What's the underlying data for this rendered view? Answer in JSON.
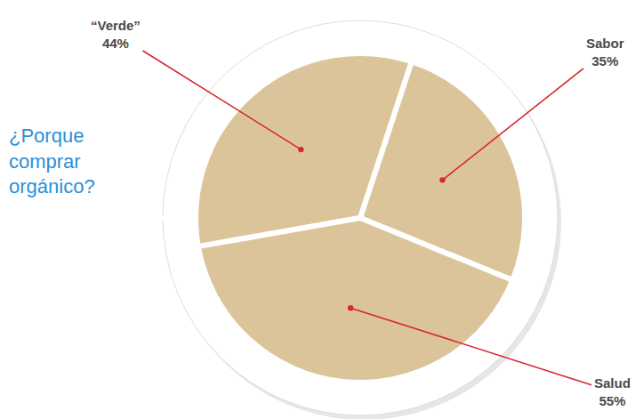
{
  "chart_data": {
    "type": "pie",
    "title": "¿Porque comprar orgánico?",
    "categories": [
      "“Verde”",
      "Sabor",
      "Salud"
    ],
    "values": [
      44,
      35,
      55
    ],
    "value_labels": [
      "44%",
      "35%",
      "55%"
    ],
    "data_labels": true,
    "color": "#dcc49a"
  }
}
